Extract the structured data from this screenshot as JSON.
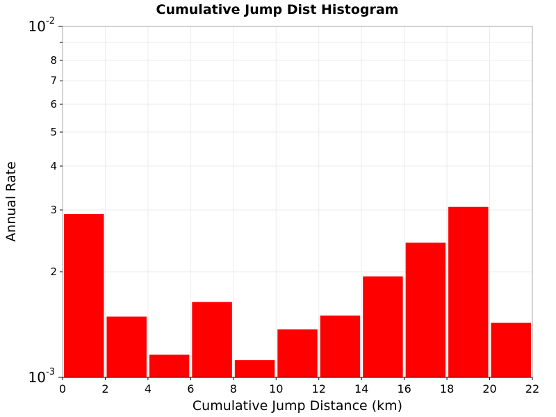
{
  "chart_data": {
    "type": "bar",
    "title": "Cumulative Jump Dist Histogram",
    "xlabel": "Cumulative Jump Distance (km)",
    "ylabel": "Annual Rate",
    "xlim": [
      0,
      22
    ],
    "ylim": [
      0.001,
      0.01
    ],
    "y_scale": "log",
    "grid": true,
    "bar_color": "#ff0000",
    "bin_width": 2,
    "x_ticks": [
      {
        "value": 0,
        "label": "0"
      },
      {
        "value": 2,
        "label": "2"
      },
      {
        "value": 4,
        "label": "4"
      },
      {
        "value": 6,
        "label": "6"
      },
      {
        "value": 8,
        "label": "8"
      },
      {
        "value": 10,
        "label": "10"
      },
      {
        "value": 12,
        "label": "12"
      },
      {
        "value": 14,
        "label": "14"
      },
      {
        "value": 16,
        "label": "16"
      },
      {
        "value": 18,
        "label": "18"
      },
      {
        "value": 20,
        "label": "20"
      },
      {
        "value": 22,
        "label": "22"
      }
    ],
    "y_decade_ticks": [
      {
        "value": 0.001,
        "base": "10",
        "exp": "-3"
      },
      {
        "value": 0.01,
        "base": "10",
        "exp": "-2"
      }
    ],
    "y_minor_ticks": [
      {
        "value": 0.002,
        "label": "2"
      },
      {
        "value": 0.003,
        "label": "3"
      },
      {
        "value": 0.004,
        "label": "4"
      },
      {
        "value": 0.005,
        "label": "5"
      },
      {
        "value": 0.006,
        "label": "6"
      },
      {
        "value": 0.007,
        "label": "7"
      },
      {
        "value": 0.008,
        "label": "8"
      },
      {
        "value": 0.009,
        "label": ""
      }
    ],
    "bins": [
      {
        "x": 1,
        "value": 0.00292
      },
      {
        "x": 3,
        "value": 0.00149
      },
      {
        "x": 5,
        "value": 0.00116
      },
      {
        "x": 7,
        "value": 0.00164
      },
      {
        "x": 9,
        "value": 0.00112
      },
      {
        "x": 11,
        "value": 0.00137
      },
      {
        "x": 13,
        "value": 0.0015
      },
      {
        "x": 15,
        "value": 0.00194
      },
      {
        "x": 17,
        "value": 0.00242
      },
      {
        "x": 19,
        "value": 0.00306
      },
      {
        "x": 21,
        "value": 0.00143
      }
    ]
  }
}
